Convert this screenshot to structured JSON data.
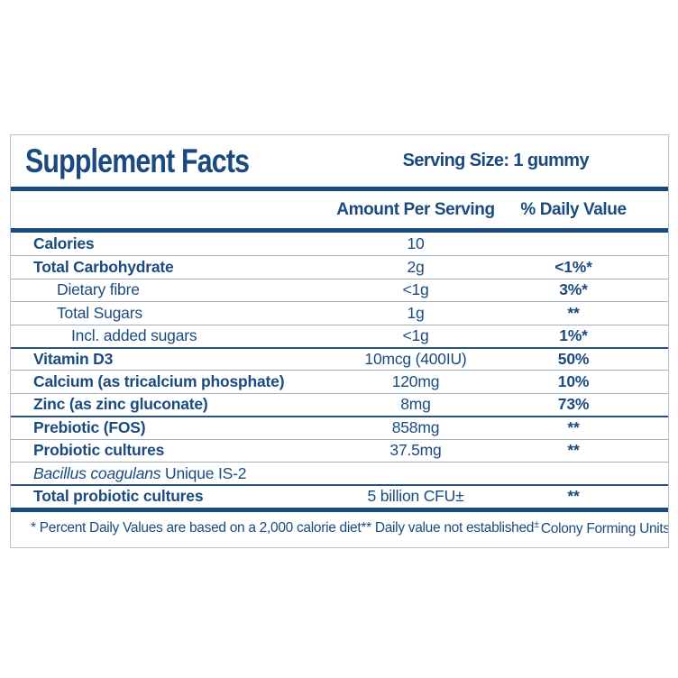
{
  "colors": {
    "navy_text": "#1b4b7e",
    "thin_divider": "#a5afba",
    "medium_divider": "#2a5480",
    "panel_border": "#bac1c9",
    "background": "#ffffff"
  },
  "label": {
    "title": "Supplement Facts",
    "serving_size": "Serving Size: 1 gummy",
    "columns": {
      "amount": "Amount Per Serving",
      "daily_value": "% Daily Value"
    },
    "rows": [
      {
        "name": "Calories",
        "amount": "10",
        "daily_value": "",
        "bold": true,
        "indent": 0,
        "divider": "none"
      },
      {
        "name": "Total Carbohydrate",
        "amount": "2g",
        "daily_value": "<1%*",
        "bold": true,
        "indent": 0,
        "divider": "thin"
      },
      {
        "name": "Dietary fibre",
        "amount": "<1g",
        "daily_value": "3%*",
        "bold": false,
        "indent": 1,
        "divider": "thin"
      },
      {
        "name": "Total Sugars",
        "amount": "1g",
        "daily_value": "**",
        "bold": false,
        "indent": 1,
        "divider": "thin"
      },
      {
        "name": "Incl. added sugars",
        "amount": "<1g",
        "daily_value": "1%*",
        "bold": false,
        "indent": 2,
        "divider": "thin"
      },
      {
        "name": "Vitamin D3",
        "amount": "10mcg (400IU)",
        "daily_value": "50%",
        "bold": true,
        "indent": 0,
        "divider": "medium"
      },
      {
        "name": "Calcium (as tricalcium phosphate)",
        "amount": "120mg",
        "daily_value": "10%",
        "bold": true,
        "indent": 0,
        "divider": "thin"
      },
      {
        "name": "Zinc (as zinc gluconate)",
        "amount": "8mg",
        "daily_value": "73%",
        "bold": true,
        "indent": 0,
        "divider": "thin"
      },
      {
        "name": "Prebiotic (FOS)",
        "amount": "858mg",
        "daily_value": "**",
        "bold": true,
        "indent": 0,
        "divider": "medium"
      },
      {
        "name": "Probiotic cultures",
        "amount": "37.5mg",
        "daily_value": "**",
        "bold": true,
        "indent": 0,
        "divider": "thin"
      },
      {
        "name_italic": "Bacillus coagulans",
        "name": " Unique IS-2",
        "amount": "",
        "daily_value": "",
        "bold": false,
        "indent": 0,
        "divider": "thin"
      },
      {
        "name": "Total probiotic cultures",
        "amount": "5 billion CFU±",
        "daily_value": "**",
        "bold": true,
        "indent": 0,
        "divider": "medium"
      }
    ],
    "footnotes": [
      {
        "mark": "*",
        "text": "Percent Daily Values are based on a 2,000 calorie diet",
        "sup": false
      },
      {
        "mark": "**",
        "text": "Daily value not established",
        "sup": false
      },
      {
        "mark": "±",
        "text": "Colony Forming Units",
        "sup": true
      }
    ]
  }
}
